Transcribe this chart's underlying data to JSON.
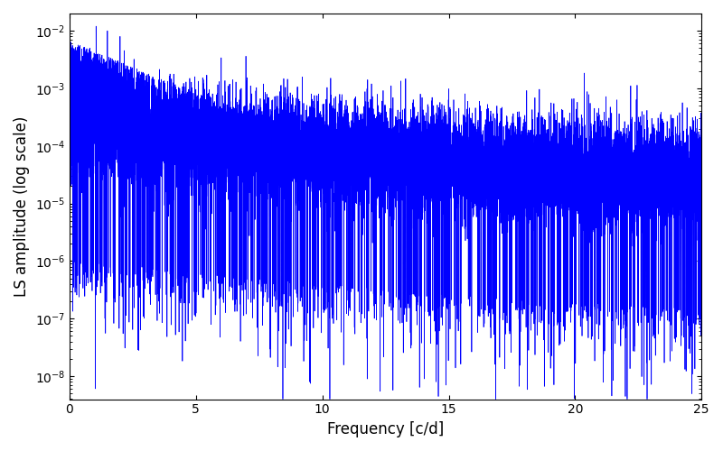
{
  "xlabel": "Frequency [c/d]",
  "ylabel": "LS amplitude (log scale)",
  "xlim": [
    0,
    25
  ],
  "ylim_log": [
    -8.4,
    -1.7
  ],
  "line_color": "#0000ff",
  "line_width": 0.5,
  "figsize": [
    8.0,
    5.0
  ],
  "dpi": 100,
  "background_color": "#ffffff",
  "yticks": [
    1e-08,
    1e-07,
    1e-06,
    1e-05,
    0.0001,
    0.001,
    0.01
  ],
  "xticks": [
    0,
    5,
    10,
    15,
    20,
    25
  ],
  "n_points": 15000,
  "seed": 12345,
  "freq_max": 25.0
}
